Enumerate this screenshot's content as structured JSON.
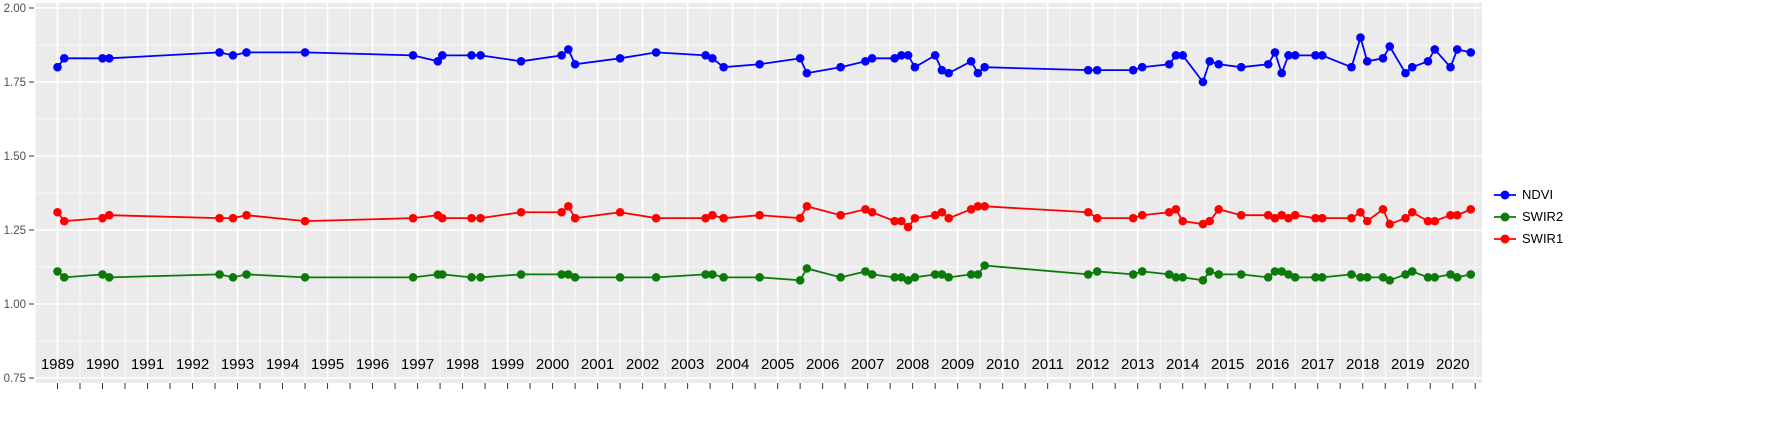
{
  "style": {
    "page_background": "#FFFFFF",
    "panel_background": "#EBEBEB",
    "grid_color": "#FFFFFF",
    "y_tick_label_color": "#4D4D4D",
    "x_tick_label_color": "#000000",
    "tick_mark_color": "#333333"
  },
  "chart_data": {
    "type": "line",
    "title": "",
    "xlabel": "",
    "ylabel": "",
    "grid": "major+minor",
    "legend_position": "right",
    "xlim": [
      1988.5,
      2020.65
    ],
    "ylim": [
      0.75,
      2.0
    ],
    "x_ticks": [
      1989,
      1990,
      1991,
      1992,
      1993,
      1994,
      1995,
      1996,
      1997,
      1998,
      1999,
      2000,
      2001,
      2002,
      2003,
      2004,
      2005,
      2006,
      2007,
      2008,
      2009,
      2010,
      2011,
      2012,
      2013,
      2014,
      2015,
      2016,
      2017,
      2018,
      2019,
      2020
    ],
    "y_ticks": [
      0.75,
      1.0,
      1.25,
      1.5,
      1.75,
      2.0
    ],
    "y_tick_labels": [
      "0.75",
      "1.00",
      "1.25",
      "1.50",
      "1.75",
      "2.00"
    ],
    "x": [
      1989.0,
      1989.15,
      1990.0,
      1990.15,
      1992.6,
      1992.9,
      1993.2,
      1994.5,
      1996.9,
      1997.45,
      1997.55,
      1998.2,
      1998.4,
      1999.3,
      2000.2,
      2000.35,
      2000.5,
      2001.5,
      2002.3,
      2003.4,
      2003.55,
      2003.8,
      2004.6,
      2005.5,
      2005.65,
      2006.4,
      2006.95,
      2007.1,
      2007.6,
      2007.75,
      2007.9,
      2008.05,
      2008.5,
      2008.65,
      2008.8,
      2009.3,
      2009.45,
      2009.6,
      2011.9,
      2012.1,
      2012.9,
      2013.1,
      2013.7,
      2013.85,
      2014.0,
      2014.45,
      2014.6,
      2014.8,
      2015.3,
      2015.9,
      2016.05,
      2016.2,
      2016.35,
      2016.5,
      2016.95,
      2017.1,
      2017.75,
      2017.95,
      2018.1,
      2018.45,
      2018.6,
      2018.95,
      2019.1,
      2019.45,
      2019.6,
      2019.95,
      2020.1,
      2020.4
    ],
    "series": [
      {
        "name": "NDVI",
        "color": "#0000FF",
        "values": [
          1.8,
          1.83,
          1.83,
          1.83,
          1.85,
          1.84,
          1.85,
          1.85,
          1.84,
          1.82,
          1.84,
          1.84,
          1.84,
          1.82,
          1.84,
          1.86,
          1.81,
          1.83,
          1.85,
          1.84,
          1.83,
          1.8,
          1.81,
          1.83,
          1.78,
          1.8,
          1.82,
          1.83,
          1.83,
          1.84,
          1.84,
          1.8,
          1.84,
          1.79,
          1.78,
          1.82,
          1.78,
          1.8,
          1.79,
          1.79,
          1.79,
          1.8,
          1.81,
          1.84,
          1.84,
          1.75,
          1.82,
          1.81,
          1.8,
          1.81,
          1.85,
          1.78,
          1.84,
          1.84,
          1.84,
          1.84,
          1.8,
          1.9,
          1.82,
          1.83,
          1.87,
          1.78,
          1.8,
          1.82,
          1.86,
          1.8,
          1.86,
          1.85
        ]
      },
      {
        "name": "SWIR2",
        "color": "#0B7A0B",
        "values": [
          1.11,
          1.09,
          1.1,
          1.09,
          1.1,
          1.09,
          1.1,
          1.09,
          1.09,
          1.1,
          1.1,
          1.09,
          1.09,
          1.1,
          1.1,
          1.1,
          1.09,
          1.09,
          1.09,
          1.1,
          1.1,
          1.09,
          1.09,
          1.08,
          1.12,
          1.09,
          1.11,
          1.1,
          1.09,
          1.09,
          1.08,
          1.09,
          1.1,
          1.1,
          1.09,
          1.1,
          1.1,
          1.13,
          1.1,
          1.11,
          1.1,
          1.11,
          1.1,
          1.09,
          1.09,
          1.08,
          1.11,
          1.1,
          1.1,
          1.09,
          1.11,
          1.11,
          1.1,
          1.09,
          1.09,
          1.09,
          1.1,
          1.09,
          1.09,
          1.09,
          1.08,
          1.1,
          1.11,
          1.09,
          1.09,
          1.1,
          1.09,
          1.1
        ]
      },
      {
        "name": "SWIR1",
        "color": "#FF0000",
        "values": [
          1.31,
          1.28,
          1.29,
          1.3,
          1.29,
          1.29,
          1.3,
          1.28,
          1.29,
          1.3,
          1.29,
          1.29,
          1.29,
          1.31,
          1.31,
          1.33,
          1.29,
          1.31,
          1.29,
          1.29,
          1.3,
          1.29,
          1.3,
          1.29,
          1.33,
          1.3,
          1.32,
          1.31,
          1.28,
          1.28,
          1.26,
          1.29,
          1.3,
          1.31,
          1.29,
          1.32,
          1.33,
          1.33,
          1.31,
          1.29,
          1.29,
          1.3,
          1.31,
          1.32,
          1.28,
          1.27,
          1.28,
          1.32,
          1.3,
          1.3,
          1.29,
          1.3,
          1.29,
          1.3,
          1.29,
          1.29,
          1.29,
          1.31,
          1.28,
          1.32,
          1.27,
          1.29,
          1.31,
          1.28,
          1.28,
          1.3,
          1.3,
          1.32
        ]
      }
    ],
    "legend_entries": [
      "NDVI",
      "SWIR2",
      "SWIR1"
    ]
  }
}
